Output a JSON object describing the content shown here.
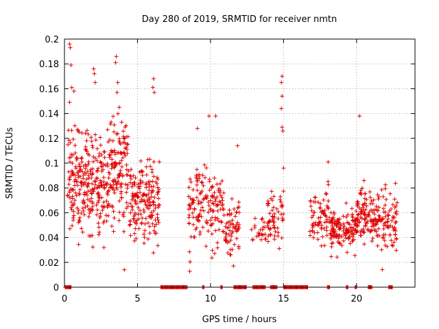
{
  "chart_data": {
    "type": "scatter",
    "title": "Day 280 of 2019, SRMTID for receiver nmtn",
    "xlabel": "GPS time / hours",
    "ylabel": "SRMTID / TECUs",
    "xlim": [
      0,
      24
    ],
    "ylim": [
      0,
      0.2
    ],
    "x_ticks": [
      0,
      5,
      10,
      15,
      20
    ],
    "x_tick_labels": [
      "0",
      "5",
      "10",
      "15",
      "20"
    ],
    "y_ticks": [
      0,
      0.02,
      0.04,
      0.06,
      0.08,
      0.1,
      0.12,
      0.14,
      0.16,
      0.18,
      0.2
    ],
    "y_tick_labels": [
      "0",
      "0.02",
      "0.04",
      "0.06",
      "0.08",
      "0.1",
      "0.12",
      "0.14",
      "0.16",
      "0.18",
      "0.2"
    ],
    "grid": true,
    "marker": "+",
    "series": [
      {
        "name": "SRMTID",
        "color": "#e00000",
        "clusters": [
          {
            "x_range": [
              0.2,
              1.6
            ],
            "y_mean": 0.088,
            "y_spread": 0.03,
            "count": 140
          },
          {
            "x_range": [
              1.6,
              3.2
            ],
            "y_mean": 0.082,
            "y_spread": 0.028,
            "count": 150
          },
          {
            "x_range": [
              3.2,
              4.4
            ],
            "y_mean": 0.09,
            "y_spread": 0.032,
            "count": 120
          },
          {
            "x_range": [
              4.4,
              6.5
            ],
            "y_mean": 0.068,
            "y_spread": 0.022,
            "count": 180
          },
          {
            "x_range": [
              8.5,
              10.8
            ],
            "y_mean": 0.064,
            "y_spread": 0.022,
            "count": 150
          },
          {
            "x_range": [
              10.8,
              12.0
            ],
            "y_mean": 0.05,
            "y_spread": 0.016,
            "count": 70
          },
          {
            "x_range": [
              12.8,
              13.8
            ],
            "y_mean": 0.045,
            "y_spread": 0.008,
            "count": 25
          },
          {
            "x_range": [
              13.9,
              15.0
            ],
            "y_mean": 0.055,
            "y_spread": 0.016,
            "count": 60
          },
          {
            "x_range": [
              16.8,
              18.2
            ],
            "y_mean": 0.058,
            "y_spread": 0.015,
            "count": 70
          },
          {
            "x_range": [
              18.2,
              20.0
            ],
            "y_mean": 0.045,
            "y_spread": 0.012,
            "count": 140
          },
          {
            "x_range": [
              20.0,
              21.0
            ],
            "y_mean": 0.058,
            "y_spread": 0.016,
            "count": 80
          },
          {
            "x_range": [
              21.0,
              22.8
            ],
            "y_mean": 0.052,
            "y_spread": 0.018,
            "count": 120
          }
        ],
        "outliers": [
          {
            "x": 0.35,
            "y": 0.196
          },
          {
            "x": 0.4,
            "y": 0.193
          },
          {
            "x": 0.45,
            "y": 0.179
          },
          {
            "x": 0.5,
            "y": 0.161
          },
          {
            "x": 0.35,
            "y": 0.149
          },
          {
            "x": 0.65,
            "y": 0.158
          },
          {
            "x": 2.0,
            "y": 0.176
          },
          {
            "x": 2.05,
            "y": 0.172
          },
          {
            "x": 2.1,
            "y": 0.165
          },
          {
            "x": 3.55,
            "y": 0.186
          },
          {
            "x": 3.5,
            "y": 0.181
          },
          {
            "x": 3.65,
            "y": 0.165
          },
          {
            "x": 3.6,
            "y": 0.157
          },
          {
            "x": 3.75,
            "y": 0.145
          },
          {
            "x": 6.1,
            "y": 0.168
          },
          {
            "x": 6.05,
            "y": 0.161
          },
          {
            "x": 6.15,
            "y": 0.157
          },
          {
            "x": 9.1,
            "y": 0.128
          },
          {
            "x": 9.9,
            "y": 0.138
          },
          {
            "x": 10.35,
            "y": 0.138
          },
          {
            "x": 11.85,
            "y": 0.114
          },
          {
            "x": 14.9,
            "y": 0.17
          },
          {
            "x": 14.85,
            "y": 0.165
          },
          {
            "x": 14.9,
            "y": 0.154
          },
          {
            "x": 14.85,
            "y": 0.144
          },
          {
            "x": 14.9,
            "y": 0.129
          },
          {
            "x": 14.95,
            "y": 0.126
          },
          {
            "x": 15.0,
            "y": 0.096
          },
          {
            "x": 18.05,
            "y": 0.101
          },
          {
            "x": 20.2,
            "y": 0.138
          },
          {
            "x": 4.1,
            "y": 0.014
          },
          {
            "x": 2.7,
            "y": 0.032
          }
        ],
        "zero_spans": [
          [
            0.05,
            0.45
          ],
          [
            6.6,
            8.4
          ],
          [
            9.45,
            9.55
          ],
          [
            10.7,
            10.8
          ],
          [
            11.6,
            12.5
          ],
          [
            12.9,
            13.8
          ],
          [
            14.1,
            14.6
          ],
          [
            15.0,
            16.7
          ],
          [
            18.0,
            18.2
          ],
          [
            19.3,
            19.45
          ],
          [
            19.9,
            20.0
          ],
          [
            20.8,
            21.1
          ],
          [
            22.2,
            22.5
          ]
        ]
      }
    ]
  }
}
